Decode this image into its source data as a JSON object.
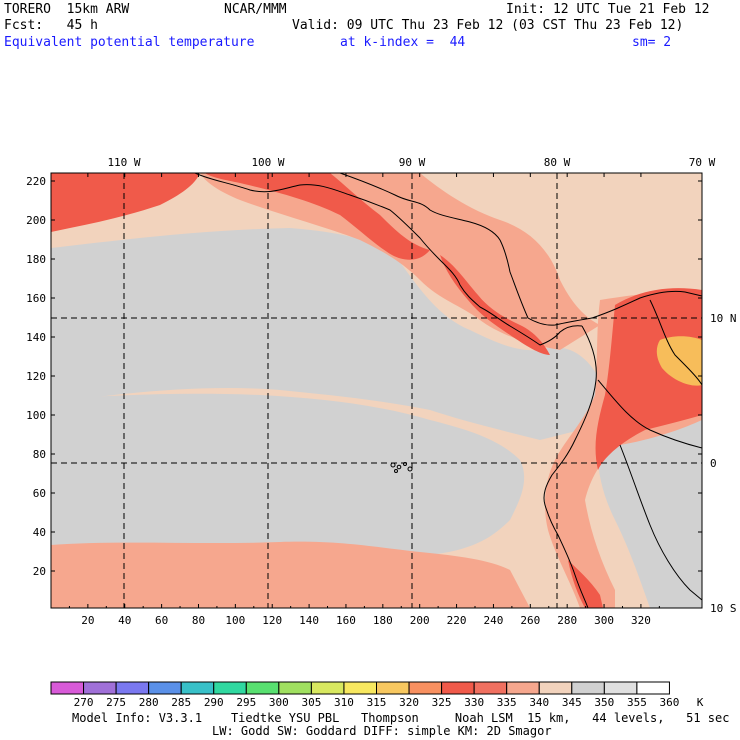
{
  "header": {
    "model": "TORERO  15km ARW",
    "org": "NCAR/MMM",
    "init": "Init: 12 UTC Tue 21 Feb 12",
    "fcst": "Fcst:   45 h",
    "valid": "Valid: 09 UTC Thu 23 Feb 12 (03 CST Thu 23 Feb 12)",
    "field": "Equivalent potential temperature",
    "level": "at k-index =  44",
    "smooth": "sm= 2"
  },
  "map": {
    "lon_labels": [
      "110 W",
      "100 W",
      "90 W",
      "80 W",
      "70 W"
    ],
    "lat_labels": [
      "10 N",
      "0",
      "10 S"
    ],
    "x_ticks": [
      "20",
      "40",
      "60",
      "80",
      "100",
      "120",
      "140",
      "160",
      "180",
      "200",
      "220",
      "240",
      "260",
      "280",
      "300",
      "320"
    ],
    "y_ticks": [
      "220",
      "200",
      "180",
      "160",
      "140",
      "120",
      "100",
      "80",
      "60",
      "40",
      "20"
    ],
    "colors": {
      "background": "#f2d3bd",
      "gray": "#d1d1d1",
      "salmon": "#f6a78e",
      "red": "#f05a4a",
      "orange": "#f7bd5a"
    }
  },
  "colorbar": {
    "labels": [
      "270",
      "275",
      "280",
      "285",
      "290",
      "295",
      "300",
      "305",
      "310",
      "315",
      "320",
      "325",
      "330",
      "335",
      "340",
      "345",
      "350",
      "355",
      "360"
    ],
    "unit": "K",
    "colors": [
      "#d85ad8",
      "#a070d8",
      "#7a78f0",
      "#5a90e8",
      "#38c0c8",
      "#30d8a0",
      "#58e070",
      "#a0e060",
      "#d8e860",
      "#f8e860",
      "#f8c860",
      "#f89060",
      "#f05a4a",
      "#f07060",
      "#f6a78e",
      "#f2d3bd",
      "#d1d1d1",
      "#e0e0e0",
      "#ffffff"
    ]
  },
  "footer": {
    "line1": "Model Info: V3.3.1    Tiedtke YSU PBL   Thompson     Noah LSM  15 km,   44 levels,   51 sec",
    "line2": "LW: Godd SW: Goddard DIFF: simple KM: 2D Smagor"
  }
}
